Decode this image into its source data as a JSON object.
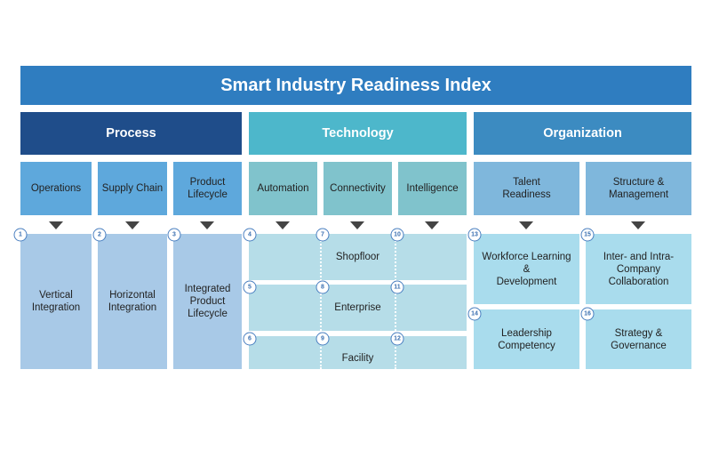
{
  "title": "Smart Industry Readiness Index",
  "pillars": [
    "Process",
    "Technology",
    "Organization"
  ],
  "building_blocks": [
    "Operations",
    "Supply Chain",
    "Product\nLifecycle",
    "Automation",
    "Connectivity",
    "Intelligence",
    "Talent\nReadiness",
    "Structure &\nManagement"
  ],
  "process_dims": [
    "Vertical\nIntegration",
    "Horizontal\nIntegration",
    "Integrated\nProduct\nLifecycle"
  ],
  "tech_rows": [
    "Shopfloor",
    "Enterprise",
    "Facility"
  ],
  "org_dims": [
    "Workforce Learning\n&\nDevelopment",
    "Leadership\nCompetency",
    "Inter- and Intra-\nCompany\nCollaboration",
    "Strategy &\nGovernance"
  ],
  "numbers": [
    "1",
    "2",
    "3",
    "4",
    "5",
    "6",
    "7",
    "8",
    "9",
    "10",
    "11",
    "12",
    "13",
    "14",
    "15",
    "16"
  ],
  "colors": {
    "title": "#2f7dc0",
    "process": "#1f4d8a",
    "technology": "#4db7cb",
    "organization": "#3c8bc1"
  }
}
